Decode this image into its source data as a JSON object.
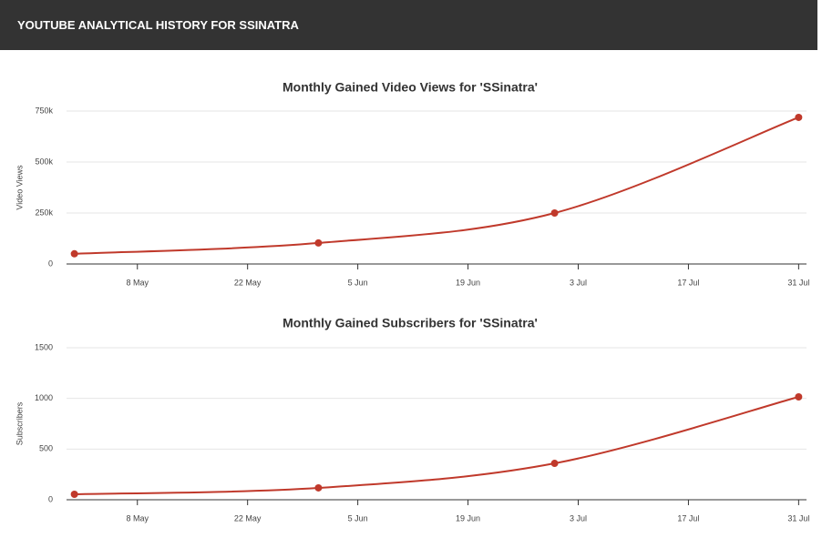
{
  "header": {
    "title": "YOUTUBE ANALYTICAL HISTORY FOR SSINATRA"
  },
  "chart_data": [
    {
      "type": "line",
      "title": "Monthly Gained Video Views for 'SSinatra'",
      "y_label": "Video Views",
      "x": [
        "04-30",
        "05-31",
        "06-30",
        "07-31"
      ],
      "values": [
        50000,
        103000,
        250000,
        719000
      ],
      "color": "#c0392b",
      "xlim": [
        "04-29",
        "08-01"
      ],
      "xticks": [
        {
          "value": "05-08",
          "label": "8 May"
        },
        {
          "value": "05-22",
          "label": "22 May"
        },
        {
          "value": "06-05",
          "label": "5 Jun"
        },
        {
          "value": "06-19",
          "label": "19 Jun"
        },
        {
          "value": "07-03",
          "label": "3 Jul"
        },
        {
          "value": "07-17",
          "label": "17 Jul"
        },
        {
          "value": "07-31",
          "label": "31 Jul"
        }
      ],
      "ylim": [
        0,
        750000
      ],
      "yticks": [
        0,
        {
          "value": 250000,
          "label": "250k"
        },
        {
          "value": 500000,
          "label": "500k"
        },
        {
          "value": 750000,
          "label": "750k"
        }
      ],
      "grid": true
    },
    {
      "type": "line",
      "title": "Monthly Gained Subscribers for 'SSinatra'",
      "y_label": "Subscribers",
      "x": [
        "04-30",
        "05-31",
        "06-30",
        "07-31"
      ],
      "values": [
        54,
        117,
        359,
        1015
      ],
      "color": "#c0392b",
      "xlim": [
        "04-29",
        "08-01"
      ],
      "xticks": [
        {
          "value": "05-08",
          "label": "8 May"
        },
        {
          "value": "05-22",
          "label": "22 May"
        },
        {
          "value": "06-05",
          "label": "5 Jun"
        },
        {
          "value": "06-19",
          "label": "19 Jun"
        },
        {
          "value": "07-03",
          "label": "3 Jul"
        },
        {
          "value": "07-17",
          "label": "17 Jul"
        },
        {
          "value": "07-31",
          "label": "31 Jul"
        }
      ],
      "ylim": [
        0,
        1500
      ],
      "yticks": [
        0,
        500,
        1000,
        1500
      ],
      "grid": true
    }
  ]
}
